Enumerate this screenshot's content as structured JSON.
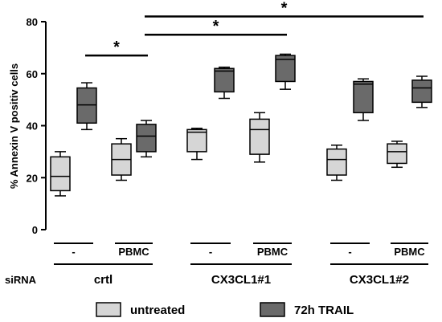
{
  "chart_data": {
    "type": "boxplot",
    "ylabel": "% Annexin V positiv cells",
    "ylim": [
      0,
      80
    ],
    "yticks": [
      "0",
      "20",
      "40",
      "60",
      "80"
    ],
    "row_label": "siRNA",
    "groups": [
      {
        "label": "crtl",
        "conditions": [
          "-",
          "PBMC"
        ]
      },
      {
        "label": "CX3CL1#1",
        "conditions": [
          "-",
          "PBMC"
        ]
      },
      {
        "label": "CX3CL1#2",
        "conditions": [
          "-",
          "PBMC"
        ]
      }
    ],
    "series": [
      {
        "name": "untreated",
        "color": "#d6d6d6",
        "boxes": [
          {
            "min": 13,
            "q1": 15,
            "median": 20.5,
            "q3": 28,
            "max": 30
          },
          {
            "min": 19,
            "q1": 21,
            "median": 27,
            "q3": 33,
            "max": 35
          },
          {
            "min": 27,
            "q1": 30,
            "median": 37.5,
            "q3": 38.5,
            "max": 39
          },
          {
            "min": 26,
            "q1": 29,
            "median": 38.5,
            "q3": 42.5,
            "max": 45
          },
          {
            "min": 19,
            "q1": 21,
            "median": 27,
            "q3": 31,
            "max": 32.5
          },
          {
            "min": 24,
            "q1": 25.5,
            "median": 30,
            "q3": 33,
            "max": 34
          }
        ]
      },
      {
        "name": "72h TRAIL",
        "color": "#6a6a6a",
        "boxes": [
          {
            "min": 38.5,
            "q1": 41,
            "median": 48,
            "q3": 54.5,
            "max": 56.5
          },
          {
            "min": 28,
            "q1": 30,
            "median": 36,
            "q3": 40.5,
            "max": 42
          },
          {
            "min": 50.5,
            "q1": 53,
            "median": 61,
            "q3": 62,
            "max": 62.5
          },
          {
            "min": 54,
            "q1": 57,
            "median": 65.5,
            "q3": 67,
            "max": 67.5
          },
          {
            "min": 42,
            "q1": 45,
            "median": 56,
            "q3": 57,
            "max": 58
          },
          {
            "min": 47,
            "q1": 49,
            "median": 54.5,
            "q3": 57.5,
            "max": 59
          }
        ]
      }
    ],
    "significance": [
      {
        "label": "*",
        "from_box": 1,
        "to_box": 3,
        "y": 67
      },
      {
        "label": "*",
        "from_box": 3,
        "to_box": 7,
        "y": 75
      },
      {
        "label": "*",
        "from_box": 3,
        "to_box": 11,
        "y": 82
      }
    ],
    "legend": {
      "position": "bottom",
      "items": [
        "untreated",
        "72h TRAIL"
      ]
    }
  }
}
